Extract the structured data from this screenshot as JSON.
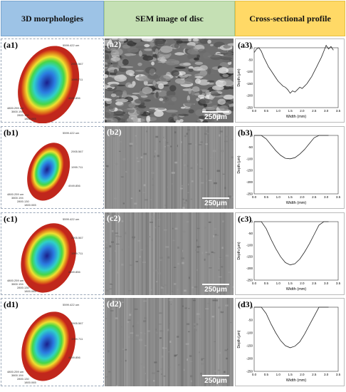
{
  "headers": {
    "col1": "3D morphologies",
    "col2": "SEM image of disc",
    "col3": "Cross-sectional profile"
  },
  "rows": [
    {
      "m3d_label": "(a1)",
      "sem_label": "(a2)",
      "prof_label": "(a3)",
      "scale_text": "250μm",
      "ann": [
        "5599.422 um",
        "2905.567",
        "1999.711",
        "4949.856",
        "4800.259 um",
        "3800.194",
        "2800.130",
        "1800.065"
      ]
    },
    {
      "m3d_label": "(b1)",
      "sem_label": "(b2)",
      "prof_label": "(b3)",
      "scale_text": "250μm",
      "ann": [
        "5599.422 um",
        "2905.567",
        "1999.711",
        "4949.856",
        "4800.259 um",
        "3800.194",
        "2800.130",
        "1800.065"
      ]
    },
    {
      "m3d_label": "(c1)",
      "sem_label": "(c2)",
      "prof_label": "(c3)",
      "scale_text": "250μm",
      "ann": [
        "5599.422 um",
        "2905.567",
        "1999.711",
        "4949.856",
        "4800.259 um",
        "3800.194",
        "2800.130",
        "1800.065"
      ]
    },
    {
      "m3d_label": "(d1)",
      "sem_label": "(d2)",
      "prof_label": "(d3)",
      "scale_text": "250μm",
      "ann": [
        "5599.422 um",
        "2905.567",
        "1999.711",
        "4949.856",
        "4800.259 um",
        "3800.194",
        "2800.130",
        "1800.065"
      ]
    }
  ],
  "chart_data": [
    {
      "type": "line",
      "xlabel": "Width  (mm)",
      "ylabel": "Depth (μm)",
      "xticks": [
        "0.0",
        "0.5",
        "1.0",
        "1.5",
        "2.0",
        "2.5",
        "3.0",
        "3.5"
      ],
      "yticks": [
        "0",
        "-50",
        "-100",
        "-150",
        "-200",
        "-250"
      ],
      "xlim": [
        0,
        3.5
      ],
      "ylim": [
        -250,
        0
      ],
      "x": [
        0.0,
        0.1,
        0.2,
        0.3,
        0.4,
        0.5,
        0.6,
        0.7,
        0.8,
        0.9,
        1.0,
        1.1,
        1.2,
        1.3,
        1.4,
        1.5,
        1.6,
        1.7,
        1.8,
        1.9,
        2.0,
        2.1,
        2.2,
        2.3,
        2.4,
        2.5,
        2.6,
        2.7,
        2.8,
        2.9,
        3.0,
        3.1,
        3.2,
        3.3
      ],
      "y": [
        -20,
        -5,
        0,
        -15,
        -40,
        -60,
        -80,
        -95,
        -110,
        -125,
        -140,
        -150,
        -160,
        -165,
        -175,
        -190,
        -180,
        -185,
        -175,
        -165,
        -170,
        -160,
        -150,
        -135,
        -120,
        -100,
        -80,
        -60,
        -40,
        -15,
        10,
        -5,
        5,
        -10
      ]
    },
    {
      "type": "line",
      "xlabel": "Width  (mm)",
      "ylabel": "Depth (μm)",
      "xticks": [
        "0.0",
        "0.5",
        "1.0",
        "1.5",
        "2.0",
        "2.5",
        "3.0",
        "3.5"
      ],
      "yticks": [
        "0",
        "-50",
        "-100",
        "-150",
        "-200",
        "-250"
      ],
      "xlim": [
        0,
        3.5
      ],
      "ylim": [
        -250,
        0
      ],
      "x": [
        0.0,
        0.3,
        0.5,
        0.7,
        0.9,
        1.1,
        1.3,
        1.5,
        1.7,
        1.9,
        2.1,
        2.3,
        2.5,
        2.7,
        2.9,
        3.1
      ],
      "y": [
        0,
        0,
        -15,
        -40,
        -65,
        -85,
        -98,
        -100,
        -95,
        -80,
        -60,
        -35,
        -10,
        0,
        0,
        0
      ]
    },
    {
      "type": "line",
      "xlabel": "Width  (mm)",
      "ylabel": "Depth (μm)",
      "xticks": [
        "0.0",
        "0.5",
        "1.0",
        "1.5",
        "2.0",
        "2.5",
        "3.0",
        "3.5"
      ],
      "yticks": [
        "0",
        "-50",
        "-100",
        "-150",
        "-200",
        "-250"
      ],
      "xlim": [
        0,
        3.5
      ],
      "ylim": [
        -250,
        0
      ],
      "x": [
        0.0,
        0.3,
        0.5,
        0.7,
        0.9,
        1.1,
        1.3,
        1.5,
        1.7,
        1.9,
        2.1,
        2.3,
        2.5,
        2.7,
        2.9,
        3.1
      ],
      "y": [
        0,
        0,
        -30,
        -75,
        -115,
        -150,
        -175,
        -185,
        -180,
        -160,
        -130,
        -95,
        -55,
        -15,
        0,
        0
      ]
    },
    {
      "type": "line",
      "xlabel": "Width  (mm)",
      "ylabel": "Depth (μm)",
      "xticks": [
        "0.0",
        "0.5",
        "1.0",
        "1.5",
        "2.0",
        "2.5",
        "3.0",
        "3.5"
      ],
      "yticks": [
        "0",
        "-50",
        "-100",
        "-150",
        "-200",
        "-250"
      ],
      "xlim": [
        0,
        3.5
      ],
      "ylim": [
        -250,
        0
      ],
      "x": [
        0.0,
        0.3,
        0.5,
        0.7,
        0.9,
        1.1,
        1.3,
        1.5,
        1.7,
        1.9,
        2.1,
        2.3,
        2.5,
        2.7,
        2.9,
        3.1
      ],
      "y": [
        0,
        0,
        -25,
        -65,
        -100,
        -130,
        -150,
        -158,
        -152,
        -135,
        -105,
        -70,
        -35,
        0,
        0,
        0
      ]
    }
  ]
}
